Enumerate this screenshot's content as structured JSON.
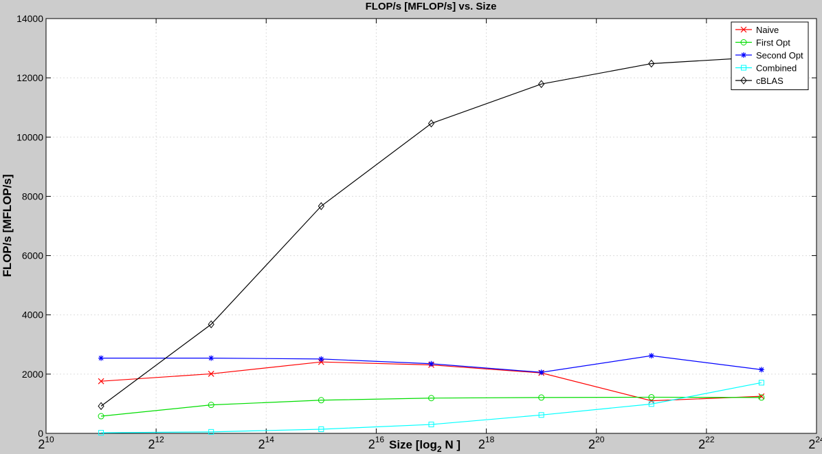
{
  "chart_data": {
    "type": "line",
    "title": "FLOP/s [MFLOP/s] vs. Size",
    "xlabel_main": "Size [log",
    "xlabel_sub": "2",
    "xlabel_tail": " N ]",
    "ylabel": "FLOP/s [MFLOP/s]",
    "x_scale": "log2",
    "xlim": [
      1024,
      16777216
    ],
    "ylim": [
      0,
      14000
    ],
    "x_tick_base": "2",
    "x_tick_exponents": [
      "10",
      "12",
      "14",
      "16",
      "18",
      "20",
      "22",
      "24"
    ],
    "y_ticks": [
      "0",
      "2000",
      "4000",
      "6000",
      "8000",
      "10000",
      "12000",
      "14000"
    ],
    "grid": true,
    "legend_position": "top-right",
    "x": [
      2048,
      8192,
      32768,
      131072,
      524288,
      2097152,
      8388608
    ],
    "series": [
      {
        "name": "Naive",
        "color": "#ff0000",
        "marker": "x",
        "values": [
          1760,
          2010,
          2410,
          2310,
          2040,
          1100,
          1250
        ]
      },
      {
        "name": "First Opt",
        "color": "#00dd00",
        "marker": "circle",
        "values": [
          580,
          960,
          1120,
          1190,
          1210,
          1220,
          1210
        ]
      },
      {
        "name": "Second Opt",
        "color": "#0000ff",
        "marker": "star",
        "values": [
          2540,
          2540,
          2510,
          2350,
          2060,
          2620,
          2150
        ]
      },
      {
        "name": "Combined",
        "color": "#00ffff",
        "marker": "square",
        "values": [
          20,
          50,
          140,
          300,
          620,
          990,
          1710
        ]
      },
      {
        "name": "cBLAS",
        "color": "#000000",
        "marker": "diamond",
        "values": [
          920,
          3680,
          7670,
          10460,
          11790,
          12480,
          12700
        ]
      }
    ]
  }
}
